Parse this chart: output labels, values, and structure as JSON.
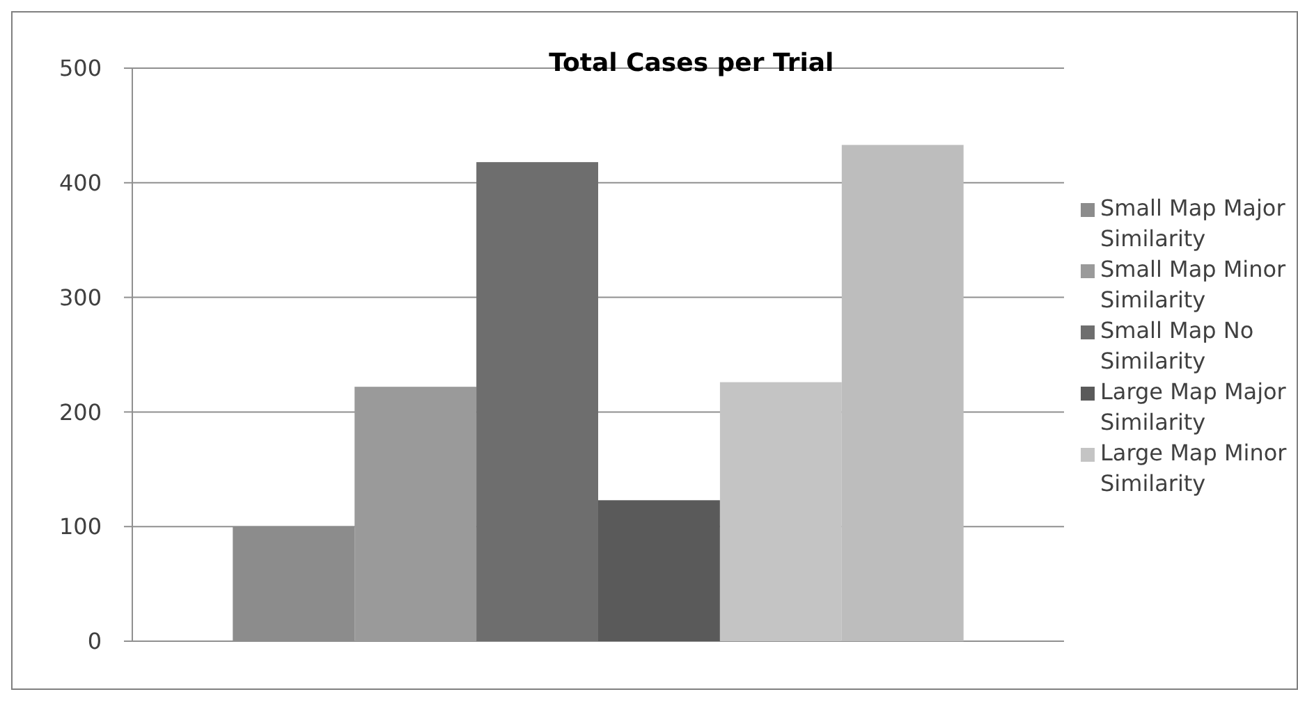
{
  "chart_data": {
    "type": "bar",
    "title": "Total Cases per Trial",
    "categories": [
      null
    ],
    "series": [
      {
        "name": "Small Map Major Similarity",
        "color": "#8c8c8c",
        "values": [
          100
        ]
      },
      {
        "name": "Small Map Minor Similarity",
        "color": "#9a9a9a",
        "values": [
          222
        ]
      },
      {
        "name": "Small Map No Similarity",
        "color": "#6e6e6e",
        "values": [
          418
        ]
      },
      {
        "name": "Large Map Major Similarity",
        "color": "#5a5a5a",
        "values": [
          123
        ]
      },
      {
        "name": "Large Map Minor Similarity",
        "color": "#c4c4c4",
        "values": [
          226
        ]
      },
      {
        "color": "#bdbdbd",
        "values": [
          433
        ]
      }
    ],
    "ylim": [
      0,
      500
    ],
    "yticks": [
      0,
      100,
      200,
      300,
      400,
      500
    ],
    "grid": "y",
    "legend": "right"
  }
}
